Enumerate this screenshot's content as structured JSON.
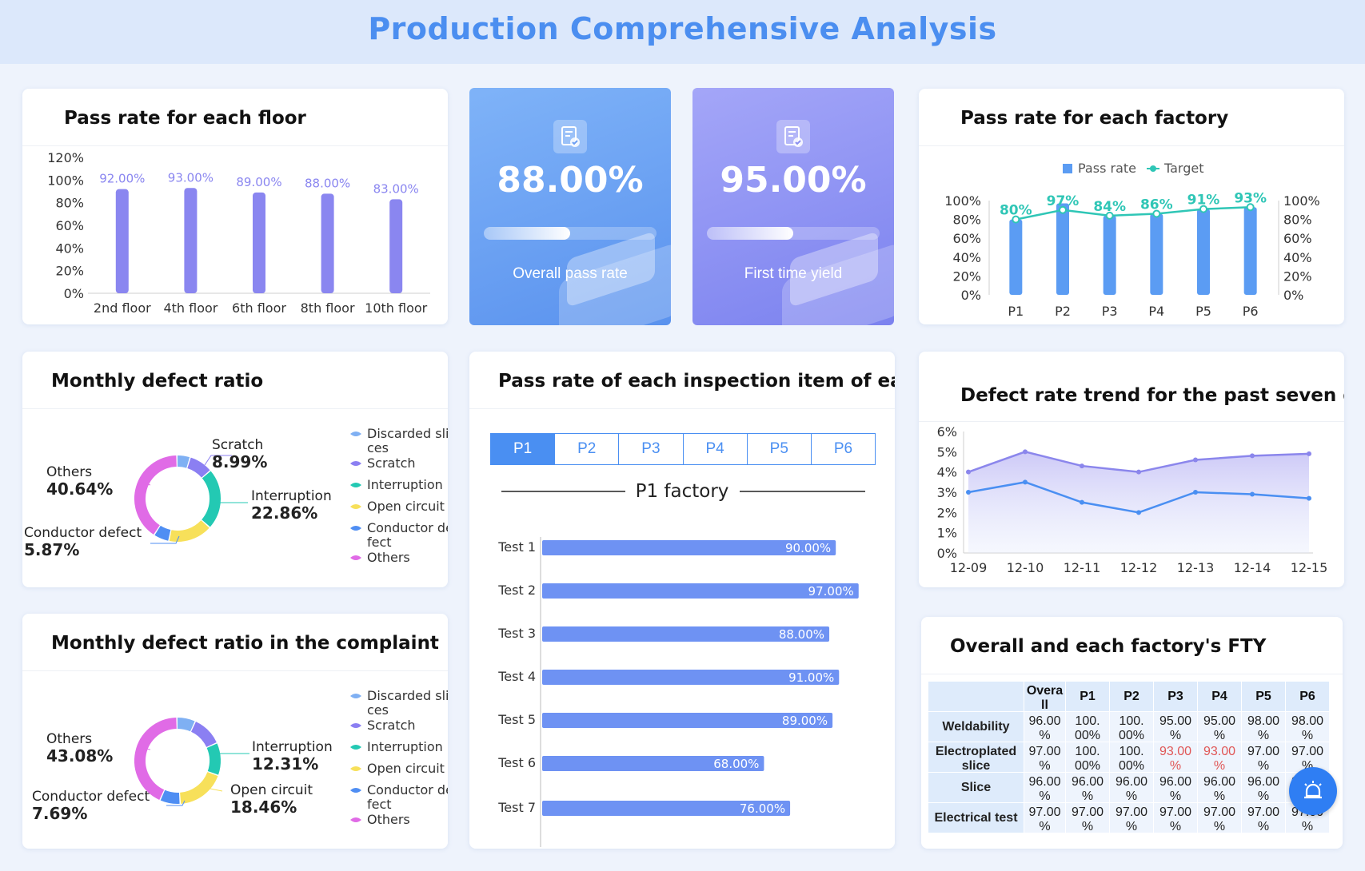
{
  "header": {
    "title": "Production Comprehensive Analysis"
  },
  "floor_chart": {
    "title": "Pass rate for each floor",
    "chart_data": {
      "type": "bar",
      "categories": [
        "2nd floor",
        "4th floor",
        "6th floor",
        "8th floor",
        "10th floor"
      ],
      "values": [
        92,
        93,
        89,
        88,
        83
      ],
      "labels": [
        "92.00%",
        "93.00%",
        "89.00%",
        "88.00%",
        "83.00%"
      ],
      "yticks": [
        "0%",
        "20%",
        "40%",
        "60%",
        "80%",
        "100%",
        "120%"
      ],
      "ylim": [
        0,
        120
      ],
      "color": "#8a86f0"
    }
  },
  "kpi_overall": {
    "value": "88.00%",
    "label": "Overall pass rate",
    "progress": 0.5
  },
  "kpi_fty": {
    "value": "95.00%",
    "label": "First time yield",
    "progress": 0.5
  },
  "factory_chart": {
    "title": "Pass rate for each factory",
    "legend": [
      "Pass rate",
      "Target"
    ],
    "chart_data": {
      "type": "bar",
      "categories": [
        "P1",
        "P2",
        "P3",
        "P4",
        "P5",
        "P6"
      ],
      "series": [
        {
          "name": "Pass rate",
          "values": [
            80,
            97,
            84,
            86,
            91,
            93
          ]
        },
        {
          "name": "Target",
          "values": [
            80,
            90,
            84,
            86,
            91,
            93
          ]
        }
      ],
      "labels": [
        "80%",
        "97%",
        "84%",
        "86%",
        "91%",
        "93%"
      ],
      "yticks": [
        "0%",
        "20%",
        "40%",
        "60%",
        "80%",
        "100%"
      ],
      "ylim": [
        0,
        100
      ],
      "bar_color": "#5b9cf3",
      "line_color": "#2fc6b6"
    }
  },
  "defect_monthly": {
    "title": "Monthly defect ratio",
    "legend": [
      "Discarded sli-\nces",
      "Scratch",
      "Interruption",
      "Open circuit",
      "Conductor de-\nfect",
      "Others"
    ],
    "callouts": [
      {
        "name": "Others",
        "value": "40.64%"
      },
      {
        "name": "Scratch",
        "value": "8.99%"
      },
      {
        "name": "Interruption",
        "value": "22.86%"
      },
      {
        "name": "Conductor defect",
        "value": "5.87%"
      }
    ],
    "chart_data": {
      "type": "pie",
      "categories": [
        "Discarded slices",
        "Scratch",
        "Interruption",
        "Open circuit",
        "Conductor defect",
        "Others"
      ],
      "values": [
        5.0,
        8.99,
        22.86,
        16.64,
        5.87,
        40.64
      ],
      "colors": [
        "#7fb0f3",
        "#8b7ff2",
        "#23c9b3",
        "#f7e05a",
        "#4f8ef3",
        "#e06be6"
      ]
    }
  },
  "defect_complaint": {
    "title": "Monthly defect ratio in the complaint",
    "legend": [
      "Discarded sli-\nces",
      "Scratch",
      "Interruption",
      "Open circuit",
      "Conductor de-\nfect",
      "Others"
    ],
    "callouts": [
      {
        "name": "Others",
        "value": "43.08%"
      },
      {
        "name": "Interruption",
        "value": "12.31%"
      },
      {
        "name": "Open circuit",
        "value": "18.46%"
      },
      {
        "name": "Conductor defect",
        "value": "7.69%"
      }
    ],
    "chart_data": {
      "type": "pie",
      "categories": [
        "Discarded slices",
        "Scratch",
        "Interruption",
        "Open circuit",
        "Conductor defect",
        "Others"
      ],
      "values": [
        7.0,
        11.46,
        12.31,
        18.46,
        7.69,
        43.08
      ],
      "colors": [
        "#7fb0f3",
        "#8b7ff2",
        "#23c9b3",
        "#f7e05a",
        "#4f8ef3",
        "#e06be6"
      ]
    }
  },
  "inspection": {
    "title": "Pass rate of each inspection item of each fac",
    "tabs": [
      "P1",
      "P2",
      "P3",
      "P4",
      "P5",
      "P6"
    ],
    "active_tab": 0,
    "subtitle": "P1 factory",
    "chart_data": {
      "type": "bar",
      "categories": [
        "Test 1",
        "Test 2",
        "Test 3",
        "Test 4",
        "Test 5",
        "Test 6",
        "Test 7"
      ],
      "values": [
        90,
        97,
        88,
        91,
        89,
        68,
        76
      ],
      "labels": [
        "90.00%",
        "97.00%",
        "88.00%",
        "91.00%",
        "89.00%",
        "68.00%",
        "76.00%"
      ],
      "xlim": [
        0,
        100
      ]
    }
  },
  "trend": {
    "title": "Defect rate trend for the past seven days",
    "chart_data": {
      "type": "area",
      "x": [
        "12-09",
        "12-10",
        "12-11",
        "12-12",
        "12-13",
        "12-14",
        "12-15"
      ],
      "series": [
        {
          "values": [
            4.0,
            5.0,
            4.3,
            4.0,
            4.6,
            4.8,
            4.9
          ]
        },
        {
          "values": [
            3.0,
            3.5,
            2.5,
            2.0,
            3.0,
            2.9,
            2.7
          ]
        }
      ],
      "yticks": [
        "0%",
        "1%",
        "2%",
        "3%",
        "4%",
        "5%",
        "6%"
      ],
      "ylim": [
        0,
        6
      ],
      "colors": [
        "#8b86ec",
        "#4a8ff2"
      ]
    }
  },
  "fty_table": {
    "title": "Overall and each factory's FTY",
    "columns": [
      "",
      "Overa\nll",
      "P1",
      "P2",
      "P3",
      "P4",
      "P5",
      "P6"
    ],
    "rows": [
      {
        "name": "Weldability",
        "cells": [
          "96.00\n%",
          "100.\n00%",
          "100.\n00%",
          "95.00\n%",
          "95.00\n%",
          "98.00\n%",
          "98.00\n%"
        ]
      },
      {
        "name": "Electroplated\nslice",
        "cells": [
          "97.00\n%",
          "100.\n00%",
          "100.\n00%",
          "93.00\n%",
          "93.00\n%",
          "97.00\n%",
          "97.00\n%"
        ],
        "warn": [
          3,
          4
        ]
      },
      {
        "name": "Slice",
        "cells": [
          "96.00\n%",
          "96.00\n%",
          "96.00\n%",
          "96.00\n%",
          "96.00\n%",
          "96.00\n%",
          "96.00\n%"
        ]
      },
      {
        "name": "Electrical test",
        "cells": [
          "97.00\n%",
          "97.00\n%",
          "97.00\n%",
          "97.00\n%",
          "97.00\n%",
          "97.00\n%",
          "97.00\n%"
        ]
      }
    ]
  }
}
